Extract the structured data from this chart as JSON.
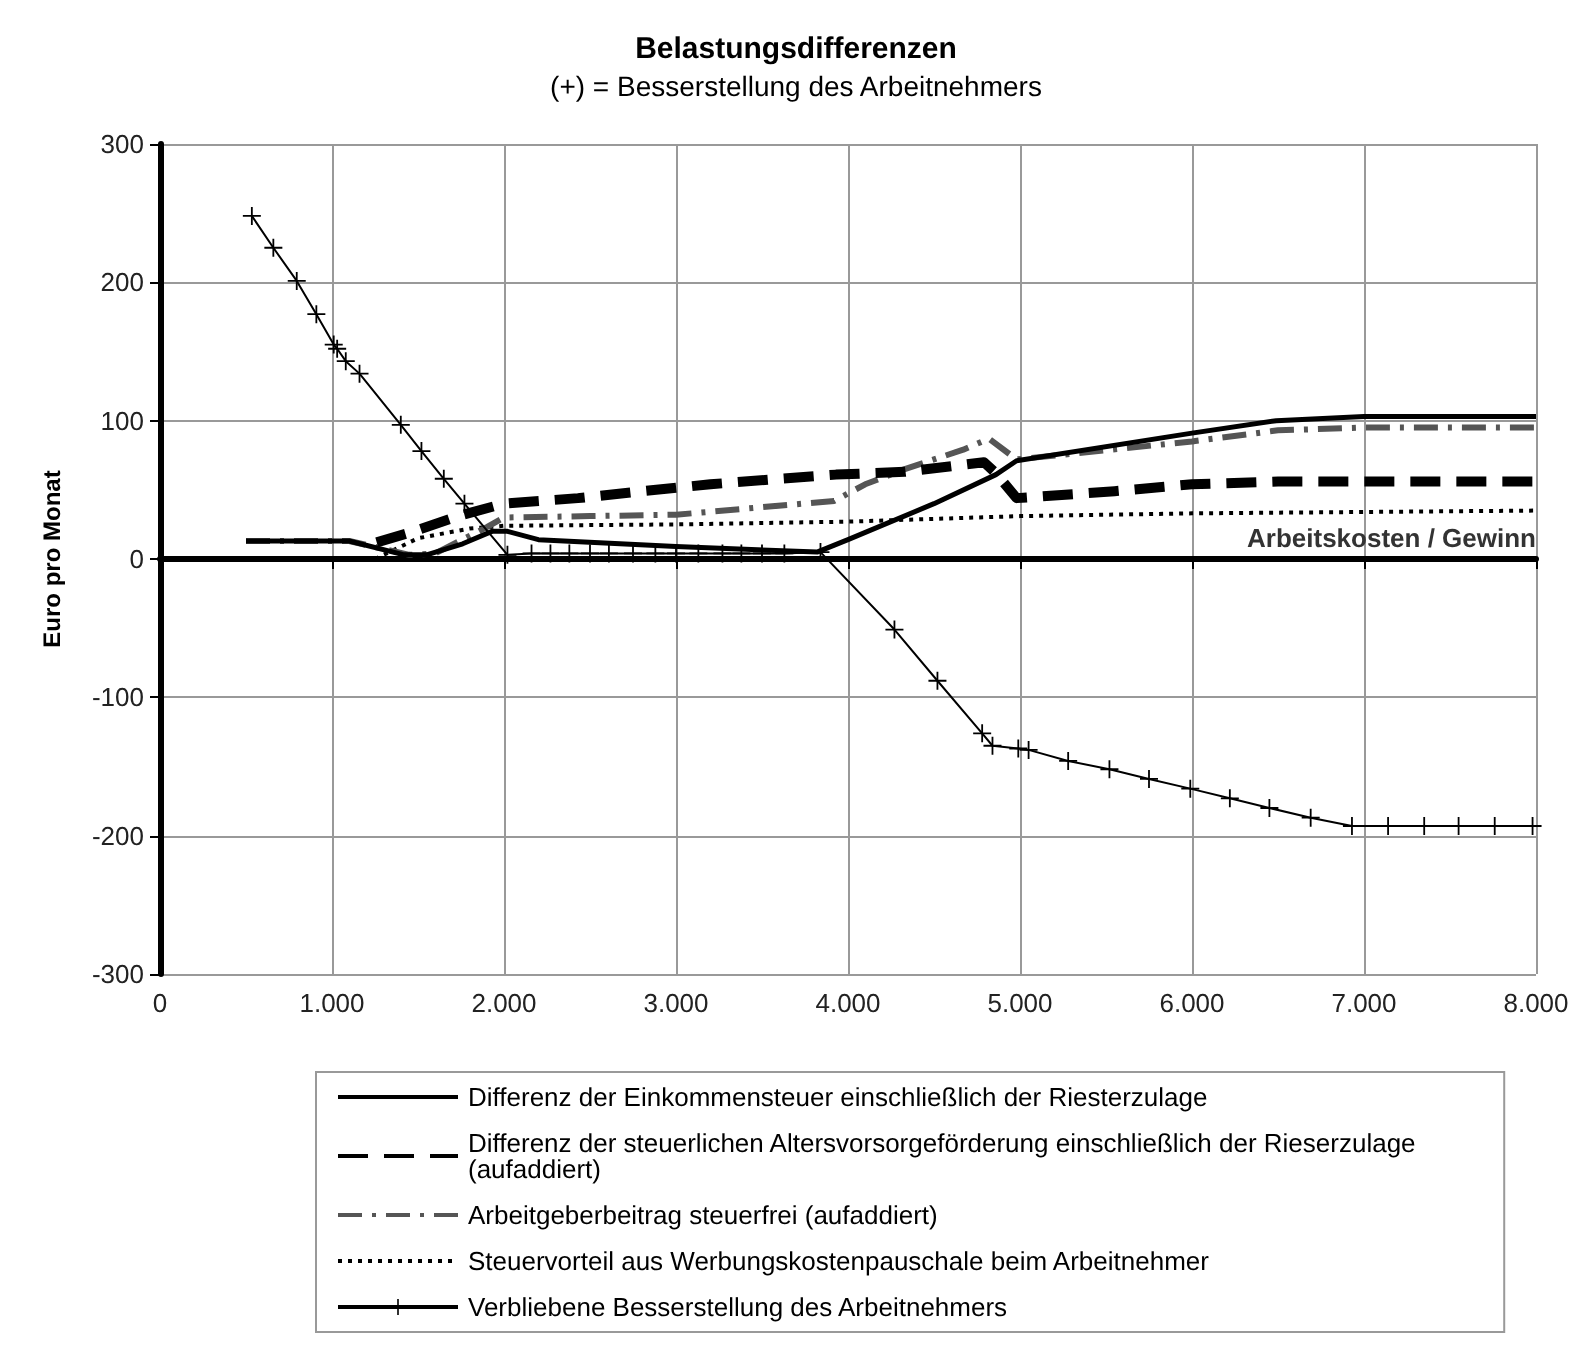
{
  "chart_data": {
    "type": "line",
    "title": "Belastungsdifferenzen",
    "subtitle": "(+) = Besserstellung des Arbeitnehmers",
    "xlabel": "Arbeitskosten / Gewinn",
    "ylabel": "Euro pro Monat",
    "xlim": [
      0,
      8000
    ],
    "xticks": [
      0,
      {
        "value": 1000,
        "label": "1.000"
      },
      {
        "value": 2000,
        "label": "2.000"
      },
      {
        "value": 3000,
        "label": "3.000"
      },
      {
        "value": 4000,
        "label": "4.000"
      },
      {
        "value": 5000,
        "label": "5.000"
      },
      {
        "value": 6000,
        "label": "6.000"
      },
      {
        "value": 7000,
        "label": "7.000"
      },
      {
        "value": 8000,
        "label": "8.000"
      }
    ],
    "ylim": [
      -300,
      300
    ],
    "yticks": [
      -300,
      -200,
      -100,
      0,
      100,
      200,
      300
    ],
    "grid": true,
    "legend": "bottom",
    "series": [
      {
        "name": "Differenz der Einkommensteuer einschließlich der Riesterzulage",
        "color": "#000000",
        "line_style": "solid",
        "marker": "none",
        "x": [
          500,
          1100,
          1420,
          1550,
          1760,
          1930,
          2020,
          2200,
          3000,
          3820,
          4000,
          4500,
          4860,
          4980,
          6000,
          6490,
          7000,
          8000
        ],
        "values": [
          13,
          13,
          3,
          3,
          11,
          20,
          20,
          14,
          9,
          5,
          14,
          40,
          61,
          71,
          91,
          100,
          103,
          103
        ]
      },
      {
        "name": "Differenz der steuerlichen Altersvorsorgeförderung einschließlich der Rieserzulage (aufaddiert)",
        "color": "#000000",
        "line_style": "dashed",
        "marker": "none",
        "x": [
          1260,
          1450,
          1760,
          2000,
          2430,
          2800,
          3200,
          3600,
          3930,
          4330,
          4790,
          4860,
          4980,
          5550,
          6000,
          6500,
          7100,
          8000
        ],
        "values": [
          12,
          19,
          32,
          40,
          44,
          49,
          54,
          58,
          61,
          63,
          70,
          62,
          44,
          49,
          54,
          56,
          56,
          56
        ]
      },
      {
        "name": "Arbeitgeberbeitrag steuerfrei (aufaddiert)",
        "color": "#555555",
        "line_style": "dashed",
        "marker": "none",
        "x": [
          500,
          1100,
          1450,
          1600,
          1900,
          2000,
          2500,
          3000,
          3920,
          4100,
          4330,
          4670,
          4820,
          4980,
          6000,
          6500,
          7000,
          8000
        ],
        "values": [
          13,
          13,
          3,
          4,
          23,
          30,
          31,
          32,
          42,
          54,
          65,
          79,
          87,
          72,
          85,
          93,
          95,
          95
        ]
      },
      {
        "name": "Steuervorteil aus Werbungskostenpauschale beim Arbeitnehmer",
        "color": "#000000",
        "line_style": "dotted",
        "marker": "none",
        "x": [
          1250,
          1500,
          1800,
          2000,
          3000,
          4000,
          5000,
          6000,
          7000,
          8000
        ],
        "values": [
          0,
          15,
          22,
          24,
          25,
          27,
          31,
          33,
          34,
          35
        ]
      },
      {
        "name": "Verbliebene Besserstellung des Arbeitnehmers",
        "color": "#000000",
        "line_style": "solid",
        "marker": "cross",
        "x": [
          534,
          659,
          795,
          909,
          1010,
          1030,
          1080,
          1160,
          1400,
          1520,
          1650,
          1770,
          2020,
          2160,
          2270,
          2380,
          2500,
          2610,
          2750,
          2880,
          3000,
          3130,
          3270,
          3380,
          3500,
          3630,
          3840,
          4270,
          4520,
          4780,
          4840,
          4990,
          5050,
          5280,
          5520,
          5750,
          5990,
          6220,
          6450,
          6690,
          6930,
          7140,
          7350,
          7550,
          7760,
          7980
        ],
        "values": [
          248,
          225,
          201,
          177,
          155,
          152,
          143,
          134,
          97,
          78,
          58,
          40,
          3,
          4,
          4,
          4,
          4,
          4,
          4,
          4,
          4,
          4,
          4,
          4,
          4,
          4,
          5,
          -51,
          -88,
          -126,
          -135,
          -137,
          -138,
          -146,
          -152,
          -159,
          -166,
          -173,
          -180,
          -187,
          -193,
          -193,
          -193,
          -193,
          -193,
          -193
        ]
      }
    ]
  }
}
